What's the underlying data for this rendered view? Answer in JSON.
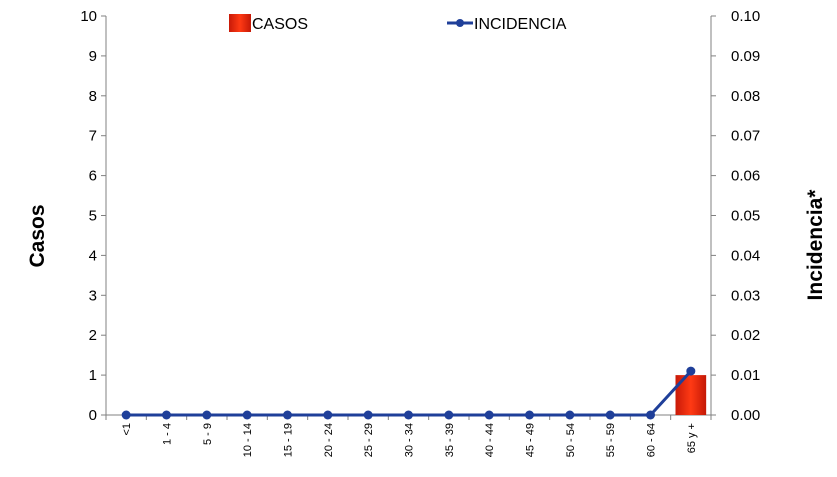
{
  "chart_data": {
    "type": "bar",
    "categories": [
      "<1",
      "1 - 4",
      "5 - 9",
      "10 - 14",
      "15 - 19",
      "20 - 24",
      "25 - 29",
      "30 - 34",
      "35 - 39",
      "40 - 44",
      "45 - 49",
      "50 - 54",
      "55 - 59",
      "60 - 64",
      "65 y +"
    ],
    "series": [
      {
        "name": "CASOS",
        "type": "bar",
        "axis": "left",
        "color": "#e8240c",
        "values": [
          0,
          0,
          0,
          0,
          0,
          0,
          0,
          0,
          0,
          0,
          0,
          0,
          0,
          0,
          1
        ]
      },
      {
        "name": "INCIDENCIA",
        "type": "line",
        "axis": "right",
        "color": "#1f3f99",
        "values": [
          0,
          0,
          0,
          0,
          0,
          0,
          0,
          0,
          0,
          0,
          0,
          0,
          0,
          0,
          0.011
        ]
      }
    ],
    "ylabel": "Casos",
    "y2label": "Incidencia*",
    "ylim": [
      0,
      10
    ],
    "y2lim": [
      0,
      0.1
    ],
    "yticks": [
      "0",
      "1",
      "2",
      "3",
      "4",
      "5",
      "6",
      "7",
      "8",
      "9",
      "10"
    ],
    "y2ticks": [
      "0.00",
      "0.01",
      "0.02",
      "0.03",
      "0.04",
      "0.05",
      "0.06",
      "0.07",
      "0.08",
      "0.09",
      "0.10"
    ],
    "grid": false,
    "legend": "top-center"
  }
}
